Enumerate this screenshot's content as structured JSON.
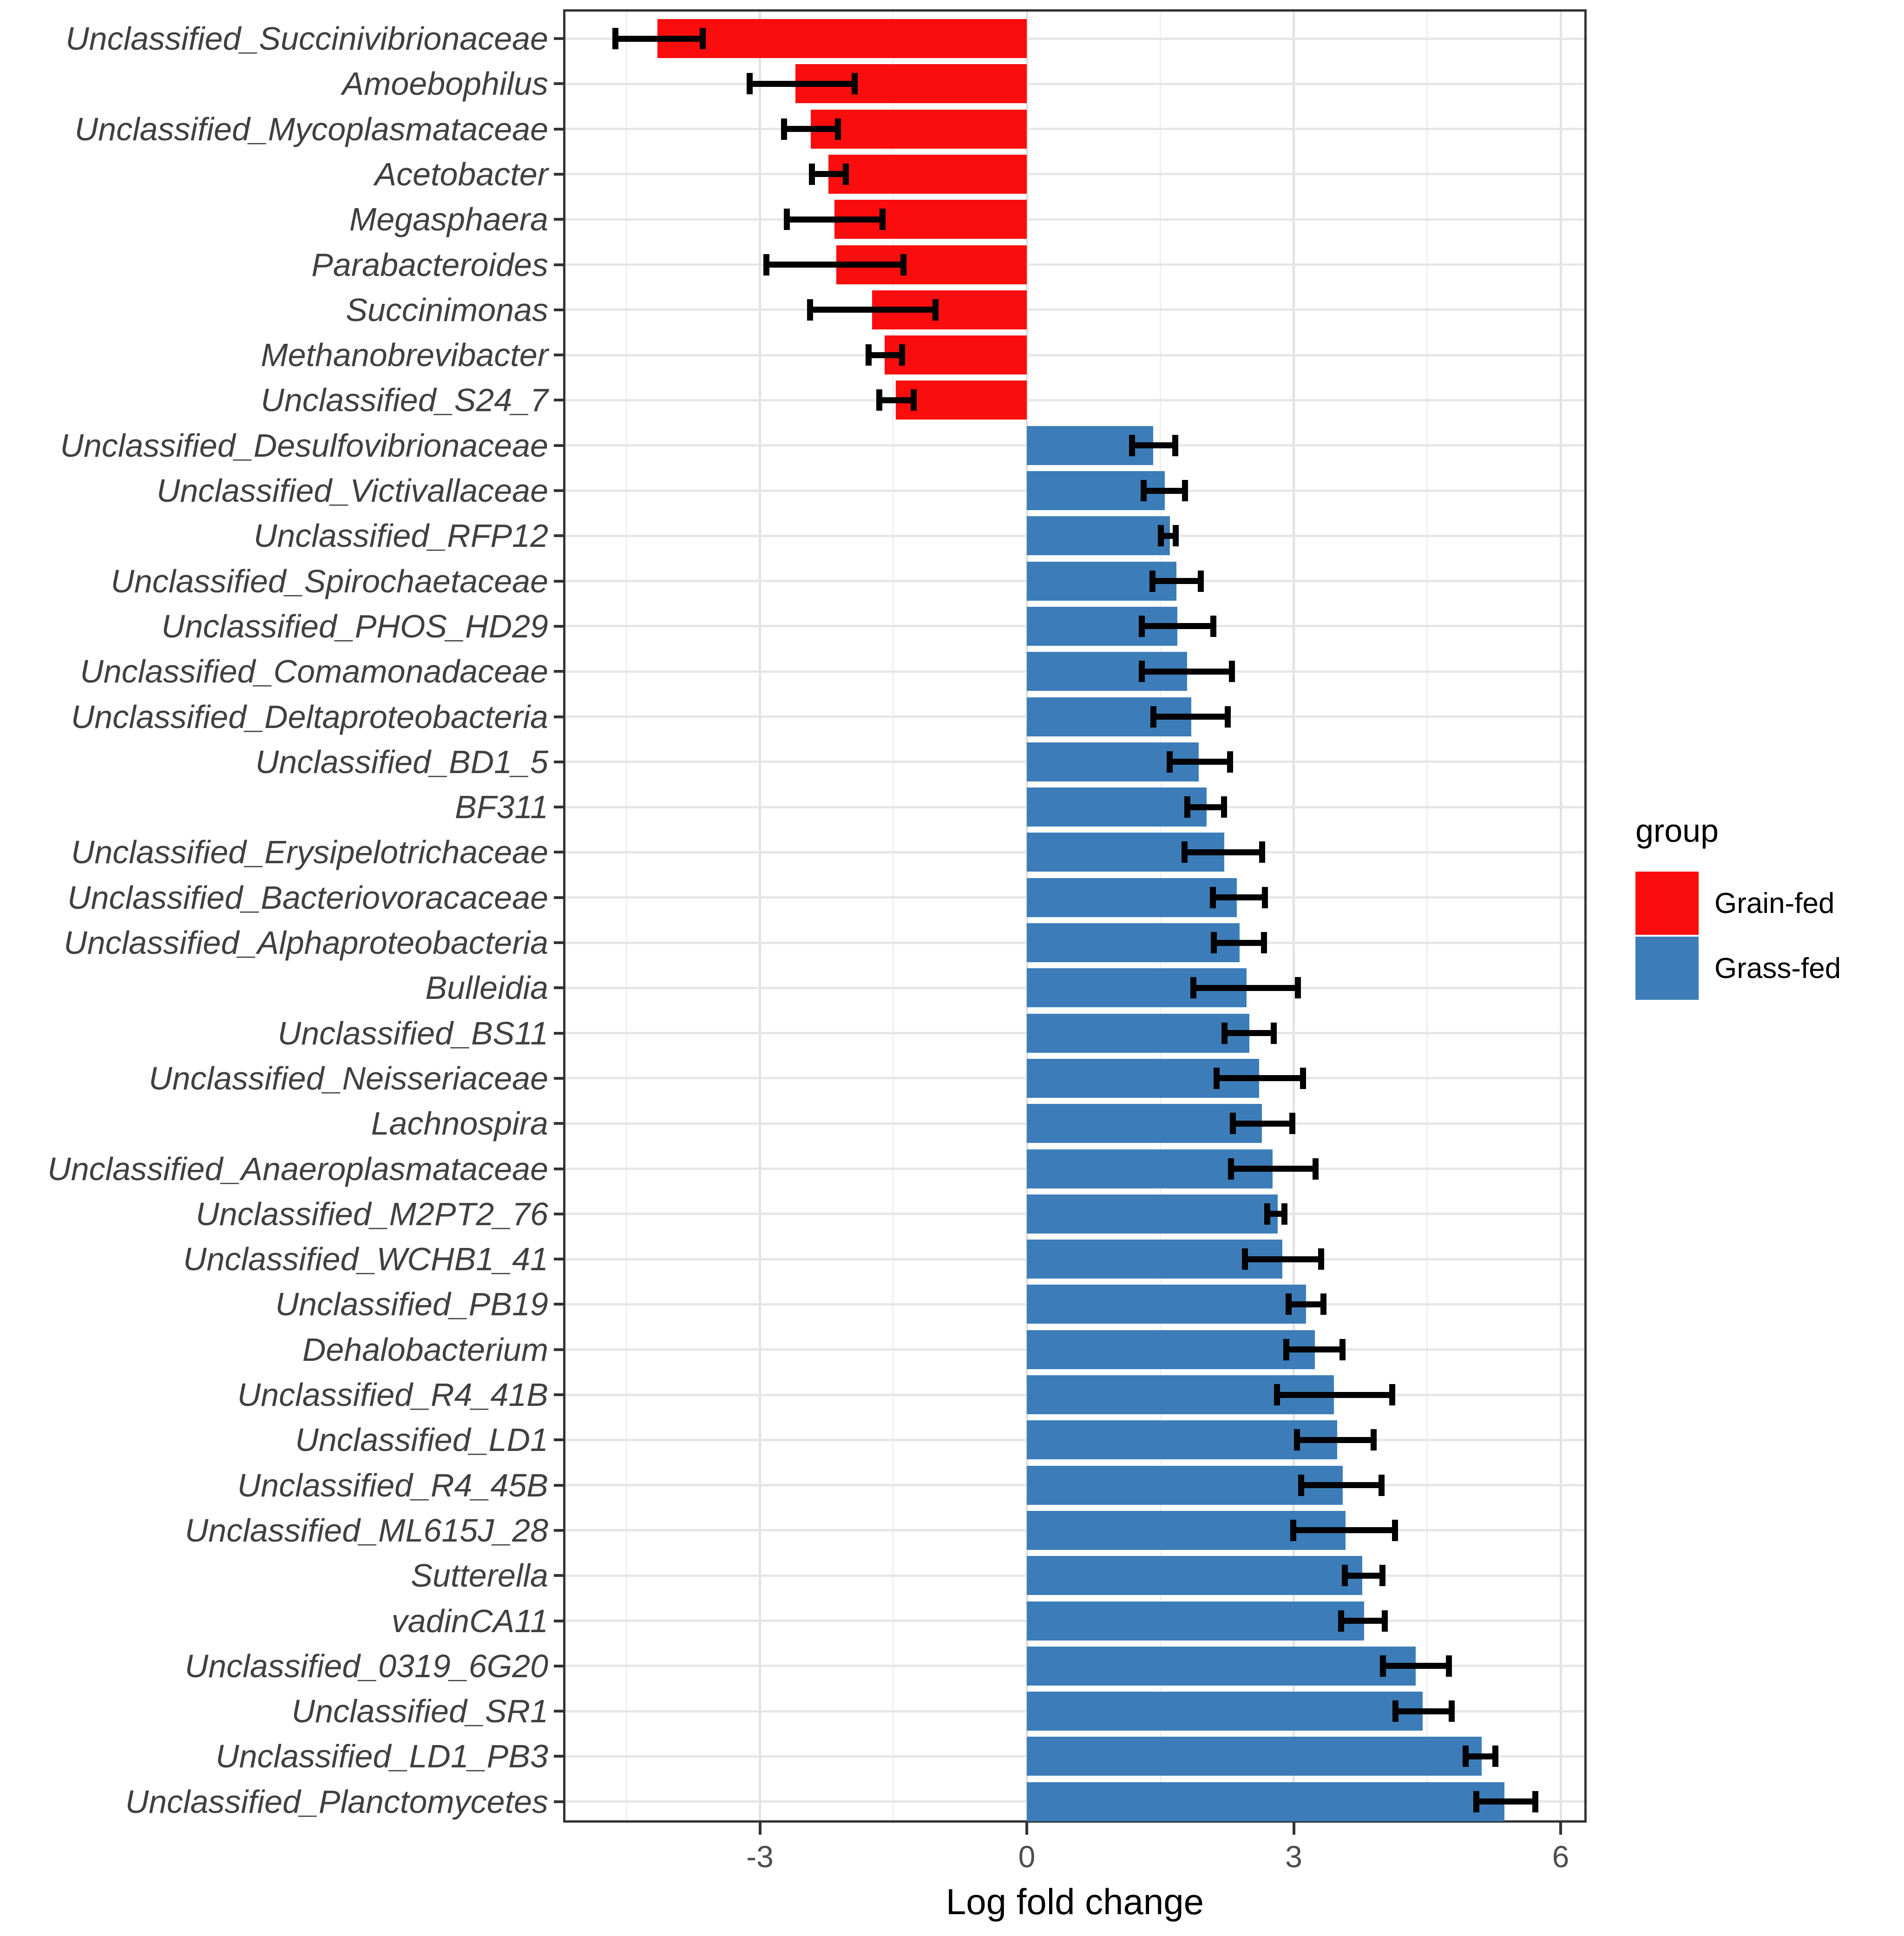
{
  "chart_data": {
    "type": "bar",
    "orientation": "horizontal",
    "xlabel": "Log fold change",
    "ylabel": "",
    "xlim": [
      -5.19,
      6.27
    ],
    "grid": true,
    "x_ticks": [
      {
        "value": -3,
        "label": "-3"
      },
      {
        "value": 0,
        "label": "0"
      },
      {
        "value": 3,
        "label": "3"
      },
      {
        "value": 6,
        "label": "6"
      }
    ],
    "x_minor_gridlines": [
      -4.5,
      -1.5,
      1.5,
      4.5
    ],
    "legend": {
      "title": "group",
      "position": "right",
      "entries": [
        {
          "label": "Grain-fed",
          "color": "#fb0d0d"
        },
        {
          "label": "Grass-fed",
          "color": "#3c7db9"
        }
      ]
    },
    "group_colors": {
      "Grain-fed": "#fb0d0d",
      "Grass-fed": "#3c7db9"
    },
    "error_bar_color": "#000000",
    "bars": [
      {
        "label": "Unclassified_Succinivibrionaceae",
        "value": -4.15,
        "lo": -4.66,
        "hi": -3.61,
        "group": "Grain-fed"
      },
      {
        "label": "Amoebophilus",
        "value": -2.6,
        "lo": -3.15,
        "hi": -1.9,
        "group": "Grain-fed"
      },
      {
        "label": "Unclassified_Mycoplasmataceae",
        "value": -2.43,
        "lo": -2.76,
        "hi": -2.09,
        "group": "Grain-fed"
      },
      {
        "label": "Acetobacter",
        "value": -2.23,
        "lo": -2.45,
        "hi": -2.0,
        "group": "Grain-fed"
      },
      {
        "label": "Megasphaera",
        "value": -2.16,
        "lo": -2.73,
        "hi": -1.59,
        "group": "Grain-fed"
      },
      {
        "label": "Parabacteroides",
        "value": -2.14,
        "lo": -2.96,
        "hi": -1.35,
        "group": "Grain-fed"
      },
      {
        "label": "Succinimonas",
        "value": -1.74,
        "lo": -2.47,
        "hi": -0.99,
        "group": "Grain-fed"
      },
      {
        "label": "Methanobrevibacter",
        "value": -1.6,
        "lo": -1.81,
        "hi": -1.37,
        "group": "Grain-fed"
      },
      {
        "label": "Unclassified_S24_7",
        "value": -1.47,
        "lo": -1.69,
        "hi": -1.24,
        "group": "Grain-fed"
      },
      {
        "label": "Unclassified_Desulfovibrionaceae",
        "value": 1.42,
        "lo": 1.15,
        "hi": 1.7,
        "group": "Grass-fed"
      },
      {
        "label": "Unclassified_Victivallaceae",
        "value": 1.55,
        "lo": 1.28,
        "hi": 1.81,
        "group": "Grass-fed"
      },
      {
        "label": "Unclassified_RFP12",
        "value": 1.61,
        "lo": 1.47,
        "hi": 1.71,
        "group": "Grass-fed"
      },
      {
        "label": "Unclassified_Spirochaetaceae",
        "value": 1.68,
        "lo": 1.38,
        "hi": 1.99,
        "group": "Grass-fed"
      },
      {
        "label": "Unclassified_PHOS_HD29",
        "value": 1.69,
        "lo": 1.26,
        "hi": 2.13,
        "group": "Grass-fed"
      },
      {
        "label": "Unclassified_Comamonadaceae",
        "value": 1.8,
        "lo": 1.26,
        "hi": 2.34,
        "group": "Grass-fed"
      },
      {
        "label": "Unclassified_Deltaproteobacteria",
        "value": 1.85,
        "lo": 1.39,
        "hi": 2.29,
        "group": "Grass-fed"
      },
      {
        "label": "Unclassified_BD1_5",
        "value": 1.93,
        "lo": 1.57,
        "hi": 2.32,
        "group": "Grass-fed"
      },
      {
        "label": "BF311",
        "value": 2.02,
        "lo": 1.77,
        "hi": 2.25,
        "group": "Grass-fed"
      },
      {
        "label": "Unclassified_Erysipelotrichaceae",
        "value": 2.22,
        "lo": 1.74,
        "hi": 2.68,
        "group": "Grass-fed"
      },
      {
        "label": "Unclassified_Bacteriovoracaceae",
        "value": 2.36,
        "lo": 2.06,
        "hi": 2.71,
        "group": "Grass-fed"
      },
      {
        "label": "Unclassified_Alphaproteobacteria",
        "value": 2.39,
        "lo": 2.07,
        "hi": 2.7,
        "group": "Grass-fed"
      },
      {
        "label": "Bulleidia",
        "value": 2.47,
        "lo": 1.84,
        "hi": 3.08,
        "group": "Grass-fed"
      },
      {
        "label": "Unclassified_BS11",
        "value": 2.5,
        "lo": 2.19,
        "hi": 2.81,
        "group": "Grass-fed"
      },
      {
        "label": "Unclassified_Neisseriaceae",
        "value": 2.61,
        "lo": 2.1,
        "hi": 3.14,
        "group": "Grass-fed"
      },
      {
        "label": "Lachnospira",
        "value": 2.64,
        "lo": 2.28,
        "hi": 3.02,
        "group": "Grass-fed"
      },
      {
        "label": "Unclassified_Anaeroplasmataceae",
        "value": 2.76,
        "lo": 2.26,
        "hi": 3.28,
        "group": "Grass-fed"
      },
      {
        "label": "Unclassified_M2PT2_76",
        "value": 2.82,
        "lo": 2.67,
        "hi": 2.93,
        "group": "Grass-fed"
      },
      {
        "label": "Unclassified_WCHB1_41",
        "value": 2.87,
        "lo": 2.42,
        "hi": 3.34,
        "group": "Grass-fed"
      },
      {
        "label": "Unclassified_PB19",
        "value": 3.14,
        "lo": 2.91,
        "hi": 3.37,
        "group": "Grass-fed"
      },
      {
        "label": "Dehalobacterium",
        "value": 3.24,
        "lo": 2.88,
        "hi": 3.58,
        "group": "Grass-fed"
      },
      {
        "label": "Unclassified_R4_41B",
        "value": 3.45,
        "lo": 2.78,
        "hi": 4.14,
        "group": "Grass-fed"
      },
      {
        "label": "Unclassified_LD1",
        "value": 3.49,
        "lo": 3.0,
        "hi": 3.93,
        "group": "Grass-fed"
      },
      {
        "label": "Unclassified_R4_45B",
        "value": 3.55,
        "lo": 3.05,
        "hi": 4.02,
        "group": "Grass-fed"
      },
      {
        "label": "Unclassified_ML615J_28",
        "value": 3.58,
        "lo": 2.96,
        "hi": 4.17,
        "group": "Grass-fed"
      },
      {
        "label": "Sutterella",
        "value": 3.77,
        "lo": 3.54,
        "hi": 4.03,
        "group": "Grass-fed"
      },
      {
        "label": "vadinCA11",
        "value": 3.79,
        "lo": 3.5,
        "hi": 4.06,
        "group": "Grass-fed"
      },
      {
        "label": "Unclassified_0319_6G20",
        "value": 4.37,
        "lo": 3.97,
        "hi": 4.78,
        "group": "Grass-fed"
      },
      {
        "label": "Unclassified_SR1",
        "value": 4.45,
        "lo": 4.11,
        "hi": 4.81,
        "group": "Grass-fed"
      },
      {
        "label": "Unclassified_LD1_PB3",
        "value": 5.11,
        "lo": 4.9,
        "hi": 5.3,
        "group": "Grass-fed"
      },
      {
        "label": "Unclassified_Planctomycetes",
        "value": 5.37,
        "lo": 5.02,
        "hi": 5.75,
        "group": "Grass-fed"
      }
    ]
  }
}
